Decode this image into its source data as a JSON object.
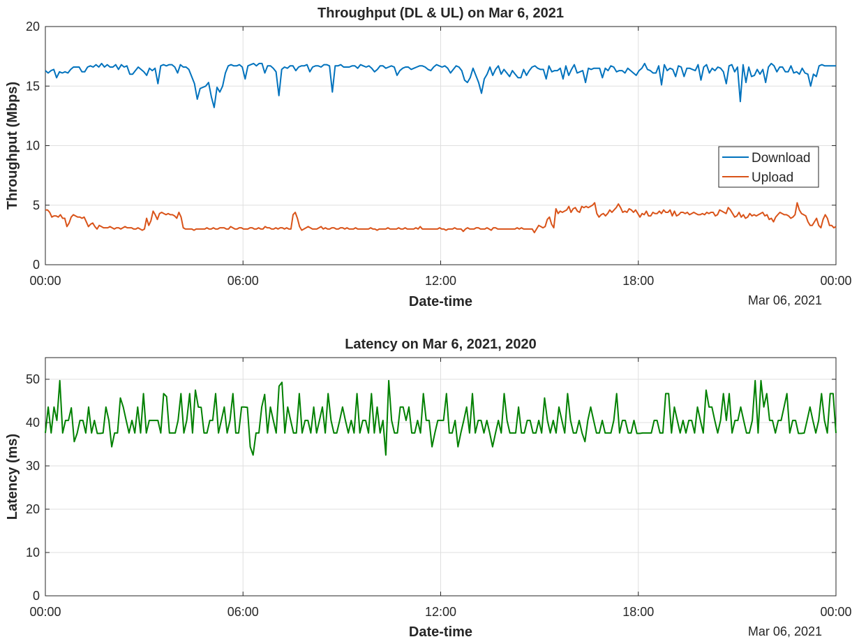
{
  "chart_data": [
    {
      "type": "line",
      "title": "Throughput (DL & UL) on Mar 6, 2021",
      "xlabel": "Date-time",
      "ylabel": "Throughput (Mbps)",
      "date_note": "Mar 06, 2021",
      "x_ticks": [
        "00:00",
        "06:00",
        "12:00",
        "18:00",
        "00:00"
      ],
      "x_tick_hours": [
        0,
        6,
        12,
        18,
        24
      ],
      "y_ticks": [
        0,
        5,
        10,
        15,
        20
      ],
      "xlim_hours": [
        0,
        24
      ],
      "ylim": [
        0,
        20
      ],
      "grid": true,
      "legend_position": "right",
      "x_hours_step": 0.0833,
      "series": [
        {
          "name": "Download",
          "color": "#0072BD",
          "values": [
            16.3,
            16.1,
            16.3,
            16.4,
            15.7,
            16.2,
            16.1,
            16.2,
            16.1,
            16.4,
            16.6,
            16.6,
            16.6,
            16.2,
            16.2,
            16.6,
            16.7,
            16.6,
            16.8,
            16.6,
            16.9,
            16.6,
            16.8,
            16.6,
            16.6,
            16.8,
            16.4,
            16.8,
            16.6,
            16.7,
            16.0,
            16.0,
            16.3,
            16.6,
            16.4,
            16.2,
            15.9,
            16.5,
            16.3,
            16.5,
            15.2,
            16.7,
            16.8,
            16.7,
            16.8,
            16.8,
            16.6,
            16.1,
            16.8,
            16.6,
            16.6,
            16.4,
            15.8,
            15.2,
            13.9,
            14.8,
            14.9,
            15.0,
            15.3,
            14.1,
            13.2,
            14.9,
            14.5,
            15.0,
            16.1,
            16.7,
            16.8,
            16.7,
            16.7,
            16.8,
            16.6,
            15.6,
            16.7,
            16.8,
            16.9,
            16.7,
            16.9,
            16.9,
            16.1,
            16.7,
            16.7,
            16.5,
            16.2,
            14.2,
            16.4,
            16.6,
            16.5,
            16.7,
            16.7,
            16.3,
            16.6,
            16.7,
            16.7,
            16.8,
            16.2,
            16.6,
            16.7,
            16.7,
            16.6,
            16.8,
            16.8,
            16.7,
            14.5,
            16.7,
            16.7,
            16.8,
            16.6,
            16.6,
            16.6,
            16.7,
            16.7,
            16.5,
            16.8,
            16.7,
            16.6,
            16.7,
            16.5,
            16.2,
            16.4,
            16.7,
            16.7,
            16.5,
            16.6,
            16.7,
            16.6,
            15.9,
            16.3,
            16.5,
            16.6,
            16.6,
            16.4,
            16.5,
            16.6,
            16.7,
            16.7,
            16.6,
            16.4,
            16.3,
            16.6,
            16.8,
            16.7,
            16.6,
            16.7,
            16.5,
            16.1,
            16.4,
            16.7,
            16.6,
            16.3,
            15.5,
            15.3,
            15.7,
            16.5,
            15.9,
            15.3,
            14.4,
            15.6,
            16.0,
            16.6,
            15.9,
            16.4,
            16.7,
            16.0,
            16.4,
            16.1,
            15.8,
            16.3,
            16.0,
            15.7,
            15.7,
            16.4,
            15.9,
            16.3,
            16.6,
            16.7,
            16.5,
            16.4,
            16.4,
            15.6,
            16.7,
            16.2,
            16.3,
            16.3,
            16.5,
            15.6,
            16.7,
            15.9,
            16.4,
            16.8,
            16.1,
            16.2,
            16.3,
            15.3,
            16.5,
            16.4,
            16.5,
            16.5,
            16.5,
            15.7,
            16.5,
            16.3,
            16.7,
            16.6,
            16.2,
            16.3,
            16.3,
            16.1,
            16.5,
            16.3,
            16.1,
            15.9,
            16.3,
            16.5,
            16.9,
            16.4,
            16.3,
            16.1,
            16.1,
            16.7,
            15.1,
            16.8,
            16.3,
            16.5,
            16.4,
            15.8,
            16.7,
            16.6,
            15.8,
            16.5,
            16.5,
            16.4,
            16.3,
            16.8,
            15.5,
            16.6,
            16.8,
            16.1,
            16.5,
            16.3,
            16.6,
            16.5,
            16.2,
            15.2,
            16.7,
            16.8,
            16.2,
            16.6,
            13.7,
            16.8,
            15.3,
            16.6,
            15.8,
            15.9,
            16.4,
            16.0,
            16.4,
            15.3,
            16.6,
            16.9,
            16.7,
            16.2,
            16.6,
            16.6,
            16.2,
            16.2,
            16.7,
            16.1,
            16.2,
            16.0,
            16.5,
            16.1,
            16.0,
            15.0,
            16.0,
            15.8,
            16.7,
            16.8,
            16.7,
            16.7,
            16.7,
            16.7,
            16.7
          ]
        },
        {
          "name": "Upload",
          "color": "#D95319",
          "values": [
            4.6,
            4.6,
            4.4,
            4.0,
            4.1,
            4.1,
            4.0,
            4.2,
            3.9,
            3.9,
            3.2,
            3.5,
            4.0,
            4.2,
            4.1,
            4.0,
            4.0,
            3.9,
            4.0,
            3.6,
            3.2,
            3.4,
            3.5,
            3.2,
            3.0,
            3.3,
            3.2,
            3.1,
            3.1,
            3.1,
            3.2,
            3.1,
            3.0,
            3.1,
            3.1,
            3.0,
            3.1,
            3.2,
            3.1,
            3.1,
            3.1,
            3.0,
            3.0,
            3.1,
            3.0,
            2.9,
            3.0,
            3.9,
            3.3,
            3.7,
            4.5,
            4.2,
            3.8,
            4.3,
            4.4,
            4.3,
            4.2,
            4.3,
            4.2,
            4.2,
            4.1,
            3.9,
            4.4,
            4.0,
            3.1,
            3.0,
            3.0,
            3.0,
            3.0,
            2.9,
            3.0,
            3.0,
            3.0,
            3.0,
            3.0,
            3.1,
            3.0,
            3.0,
            3.1,
            3.0,
            3.0,
            3.1,
            3.1,
            3.1,
            3.0,
            3.0,
            3.2,
            3.1,
            3.0,
            3.0,
            3.1,
            3.1,
            3.0,
            3.0,
            3.0,
            3.1,
            3.1,
            3.0,
            3.0,
            3.1,
            3.0,
            3.0,
            3.2,
            3.1,
            3.1,
            3.0,
            3.0,
            3.1,
            3.0,
            3.1,
            3.1,
            3.0,
            3.1,
            3.0,
            3.0,
            4.2,
            4.4,
            3.9,
            3.2,
            2.9,
            3.0,
            3.1,
            3.2,
            3.1,
            3.0,
            3.0,
            3.0,
            3.1,
            3.2,
            3.0,
            3.1,
            3.0,
            3.0,
            3.1,
            3.1,
            3.0,
            3.0,
            3.1,
            3.1,
            3.0,
            3.1,
            3.0,
            3.0,
            3.0,
            3.1,
            3.0,
            3.0,
            3.0,
            3.0,
            3.0,
            3.0,
            3.1,
            3.0,
            3.0,
            2.9,
            3.0,
            3.0,
            3.0,
            3.0,
            3.1,
            3.0,
            3.0,
            3.0,
            3.0,
            3.1,
            3.0,
            3.0,
            3.1,
            3.0,
            3.0,
            3.0,
            3.0,
            3.1,
            3.0,
            3.2,
            3.0,
            3.0,
            3.0,
            3.0,
            3.0,
            3.0,
            3.0,
            3.0,
            3.1,
            3.0,
            3.0,
            2.9,
            3.0,
            3.0,
            3.0,
            3.1,
            3.0,
            3.0,
            3.0,
            2.8,
            3.0,
            3.1,
            3.0,
            3.0,
            3.0,
            3.1,
            3.1,
            3.0,
            3.0,
            3.0,
            3.1,
            3.0,
            2.9,
            3.1,
            3.1,
            3.0,
            3.0,
            3.0,
            3.0,
            3.0,
            3.0,
            3.0,
            3.0,
            3.0,
            3.1,
            3.0,
            3.1,
            3.0,
            3.0,
            3.0,
            3.0,
            3.0,
            2.7,
            3.0,
            3.3,
            3.2,
            3.1,
            3.2,
            3.8,
            4.0,
            3.4,
            3.1,
            4.7,
            4.3,
            4.5,
            4.4,
            4.5,
            4.6,
            4.9,
            4.4,
            4.7,
            4.8,
            4.5,
            4.4,
            4.9,
            4.8,
            4.9,
            4.8,
            4.9,
            5.0,
            5.2,
            4.3,
            4.0,
            4.2,
            4.3,
            4.1,
            4.3,
            4.6,
            4.4,
            4.6,
            4.8,
            5.1,
            4.8,
            4.4,
            4.5,
            4.4,
            4.7,
            4.6,
            4.4,
            4.6,
            4.3,
            4.0,
            4.3,
            4.2,
            4.5,
            4.1,
            4.1,
            4.4,
            4.3,
            4.3,
            4.5,
            4.3,
            4.6,
            4.4,
            4.4,
            4.6,
            4.1,
            4.5,
            4.1,
            4.2,
            4.4,
            4.4,
            4.3,
            4.4,
            4.2,
            4.3,
            4.4,
            4.3,
            4.2,
            4.2,
            4.3,
            4.2,
            4.4,
            4.3,
            4.4,
            4.4,
            4.1,
            4.2,
            4.6,
            4.5,
            4.4,
            4.3,
            4.8,
            4.6,
            4.3,
            4.0,
            4.1,
            4.4,
            4.0,
            4.2,
            3.9,
            4.0,
            4.3,
            4.1,
            4.2,
            4.1,
            4.2,
            4.3,
            4.4,
            4.1,
            4.2,
            3.8,
            3.9,
            3.6,
            4.0,
            4.2,
            4.4,
            4.3,
            4.2,
            4.2,
            4.1,
            3.9,
            4.0,
            4.2,
            5.2,
            4.6,
            4.3,
            4.2,
            4.1,
            3.6,
            3.3,
            3.3,
            3.6,
            3.9,
            3.3,
            3.1,
            3.8,
            4.2,
            3.9,
            3.3,
            3.3,
            3.1,
            3.2
          ]
        }
      ]
    },
    {
      "type": "line",
      "title": "Latency on Mar 6, 2021, 2020",
      "xlabel": "Date-time",
      "ylabel": "Latency (ms)",
      "date_note": "Mar 06, 2021",
      "x_ticks": [
        "00:00",
        "06:00",
        "12:00",
        "18:00",
        "00:00"
      ],
      "x_tick_hours": [
        0,
        6,
        12,
        18,
        24
      ],
      "y_ticks": [
        0,
        10,
        20,
        30,
        40,
        50
      ],
      "xlim_hours": [
        0,
        24
      ],
      "ylim": [
        0,
        55
      ],
      "grid": true,
      "x_hours_step": 0.0833,
      "series": [
        {
          "color": "#008000",
          "values": [
            37.6,
            43.6,
            37.6,
            43.6,
            40.5,
            49.7,
            37.6,
            40.5,
            40.5,
            43.4,
            35.6,
            37.5,
            40.5,
            40.5,
            37.6,
            43.6,
            37.6,
            40.5,
            37.5,
            37.5,
            37.6,
            43.6,
            40.5,
            34.4,
            37.6,
            37.6,
            45.7,
            43.6,
            40.5,
            37.6,
            40.5,
            37.6,
            43.6,
            37.6,
            46.7,
            37.6,
            40.5,
            40.5,
            40.5,
            40.5,
            37.6,
            46.7,
            46.0,
            37.6,
            37.6,
            37.6,
            40.5,
            46.7,
            37.6,
            40.5,
            46.7,
            37.6,
            47.5,
            43.6,
            43.5,
            37.6,
            37.6,
            40.5,
            40.5,
            46.7,
            37.6,
            40.5,
            43.6,
            37.6,
            40.5,
            46.7,
            37.6,
            37.6,
            43.6,
            43.6,
            43.5,
            34.4,
            32.5,
            37.6,
            37.6,
            43.6,
            46.5,
            37.6,
            43.6,
            40.5,
            37.6,
            48.4,
            49.3,
            37.6,
            43.6,
            40.5,
            37.6,
            37.6,
            46.7,
            37.6,
            40.5,
            40.5,
            37.6,
            43.6,
            37.6,
            40.5,
            43.6,
            37.6,
            46.7,
            40.5,
            37.6,
            37.6,
            40.5,
            43.6,
            40.5,
            37.6,
            40.5,
            37.6,
            46.7,
            37.6,
            40.5,
            40.5,
            37.6,
            46.7,
            37.6,
            43.6,
            37.6,
            40.5,
            32.5,
            49.7,
            40.5,
            37.6,
            37.6,
            43.6,
            43.6,
            40.5,
            43.6,
            37.6,
            37.6,
            40.5,
            37.6,
            46.7,
            40.5,
            40.5,
            34.4,
            37.6,
            40.5,
            40.5,
            40.5,
            46.7,
            37.6,
            37.6,
            40.5,
            34.4,
            37.6,
            40.5,
            43.6,
            37.6,
            46.7,
            37.6,
            40.5,
            40.5,
            37.6,
            40.5,
            37.6,
            34.4,
            37.6,
            40.5,
            37.6,
            46.7,
            40.5,
            37.6,
            37.6,
            37.6,
            43.6,
            37.6,
            37.6,
            40.5,
            40.5,
            37.6,
            37.6,
            40.5,
            37.6,
            45.7,
            40.5,
            37.6,
            40.5,
            37.6,
            43.6,
            40.5,
            37.6,
            46.7,
            40.5,
            37.6,
            37.6,
            40.5,
            37.6,
            35.6,
            40.5,
            43.6,
            40.5,
            37.6,
            37.6,
            40.5,
            37.6,
            37.6,
            37.6,
            40.5,
            46.7,
            37.6,
            40.5,
            40.5,
            37.6,
            37.6,
            40.5,
            37.5,
            37.5,
            37.6,
            37.6,
            37.6,
            37.6,
            40.5,
            40.5,
            37.6,
            37.6,
            46.7,
            46.7,
            37.6,
            43.6,
            40.5,
            37.6,
            40.5,
            37.6,
            40.5,
            40.5,
            37.6,
            43.6,
            40.5,
            37.6,
            47.5,
            43.6,
            43.6,
            40.5,
            37.6,
            40.5,
            46.7,
            40.5,
            46.7,
            37.6,
            40.5,
            40.5,
            43.6,
            40.5,
            37.6,
            37.6,
            40.5,
            49.7,
            37.6,
            49.7,
            43.6,
            46.7,
            40.5,
            40.5,
            37.6,
            40.5,
            40.5,
            43.6,
            46.7,
            37.6,
            40.5,
            40.5,
            37.5,
            37.5,
            37.6,
            40.5,
            43.6,
            40.5,
            37.6,
            40.5,
            46.7,
            40.5,
            37.6,
            46.7,
            46.7,
            37.6
          ]
        }
      ]
    }
  ]
}
